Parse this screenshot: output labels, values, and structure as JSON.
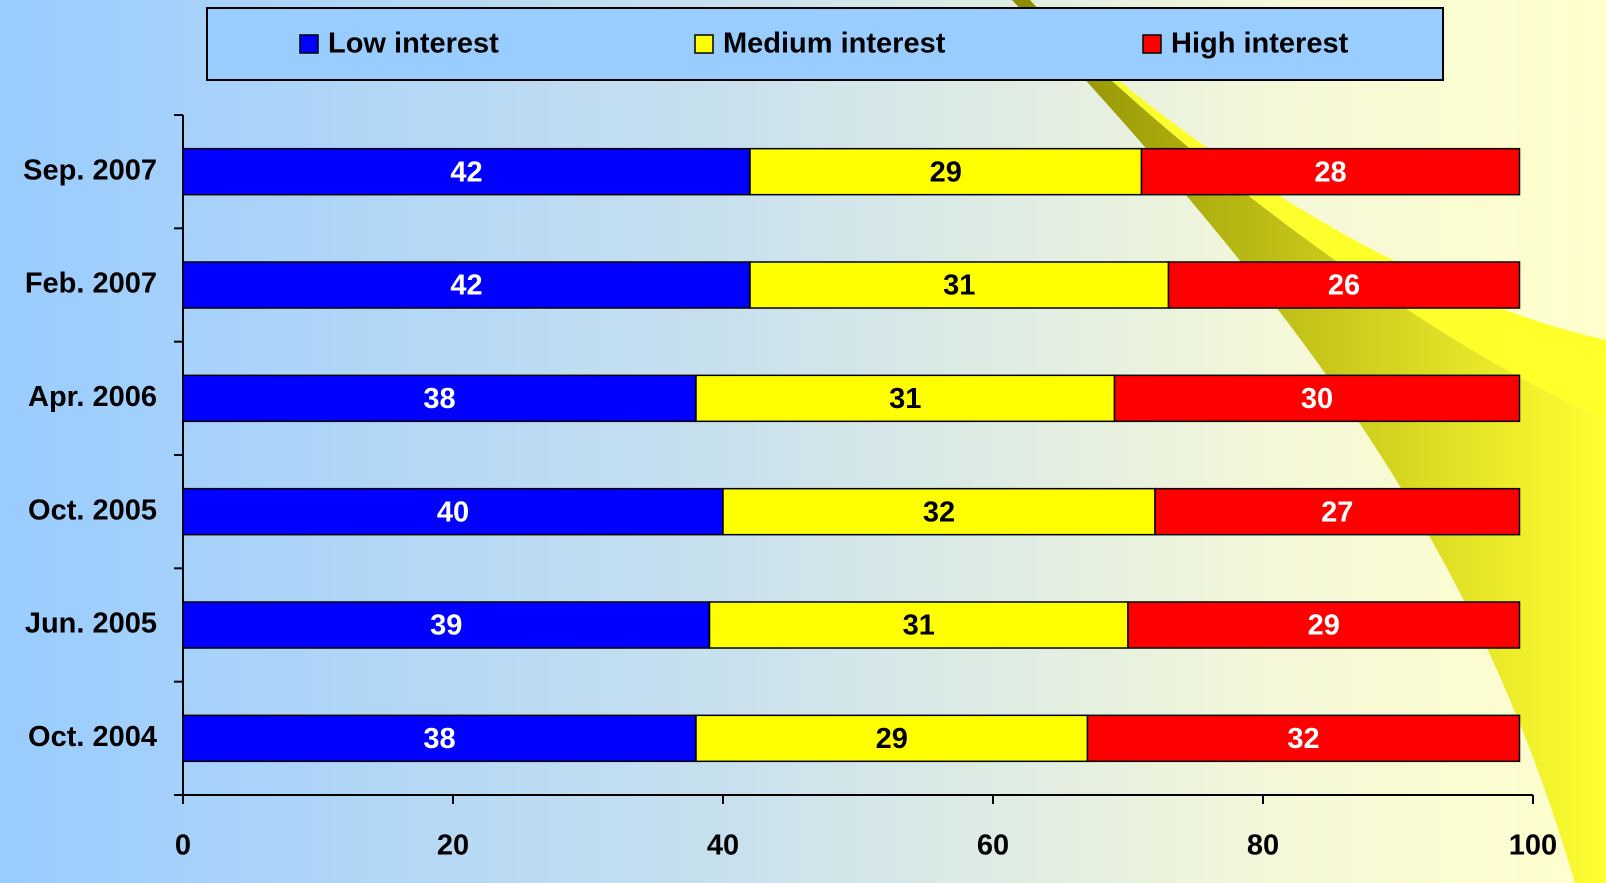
{
  "chart_data": {
    "type": "stacked-barh",
    "categories": [
      "Sep. 2007",
      "Feb. 2007",
      "Apr. 2006",
      "Oct. 2005",
      "Jun. 2005",
      "Oct. 2004"
    ],
    "series": [
      {
        "name": "Low interest",
        "color": "#0000ff",
        "values": [
          42,
          42,
          38,
          40,
          39,
          38
        ]
      },
      {
        "name": "Medium interest",
        "color": "#ffff00",
        "values": [
          29,
          31,
          31,
          32,
          31,
          29
        ]
      },
      {
        "name": "High interest",
        "color": "#ff0000",
        "values": [
          28,
          26,
          30,
          27,
          29,
          32
        ]
      }
    ],
    "xlim": [
      0,
      100
    ],
    "xticks": [
      0,
      20,
      40,
      60,
      80,
      100
    ],
    "legend": "top"
  }
}
